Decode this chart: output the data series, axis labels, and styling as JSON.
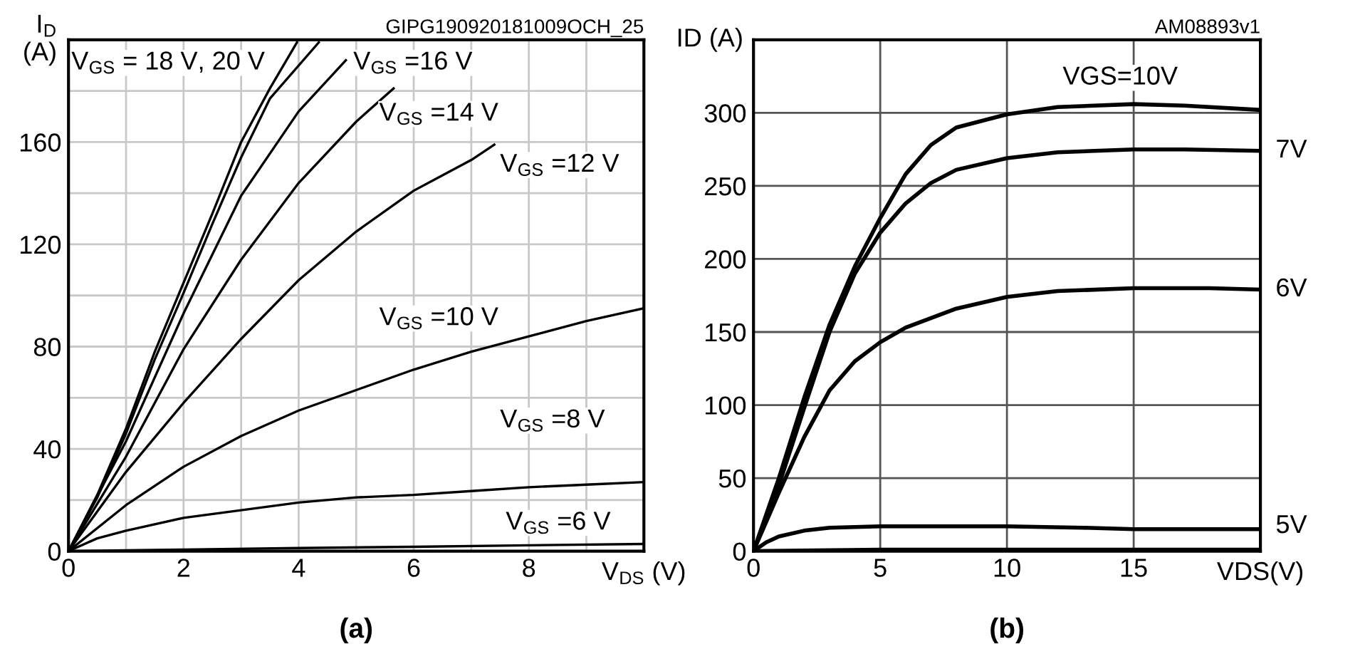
{
  "chart_data": [
    {
      "type": "line",
      "title": "(a)",
      "subtitle": "GIPG190920181009OCH_25",
      "xlabel": "V$_{DS}$ (V)",
      "ylabel": "I$_{D}$\n(A)",
      "xlim": [
        0,
        10
      ],
      "ylim": [
        0,
        200
      ],
      "xticks": [
        0,
        {
          "value": 1,
          "label": null
        },
        2,
        {
          "value": 3,
          "label": null
        },
        4,
        {
          "value": 5,
          "label": null
        },
        6,
        {
          "value": 7,
          "label": null
        },
        8,
        {
          "value": 9,
          "label": null
        },
        {
          "value": 10,
          "label": null
        }
      ],
      "yticks": [
        0,
        {
          "value": 20,
          "label": null
        },
        40,
        {
          "value": 60,
          "label": null
        },
        80,
        {
          "value": 100,
          "label": null
        },
        120,
        {
          "value": 140,
          "label": null
        },
        160,
        {
          "value": 180,
          "label": null
        },
        {
          "value": 200,
          "label": null
        }
      ],
      "grid": true,
      "legend": false,
      "marker": "none",
      "line_style": "solid",
      "series": [
        {
          "name": "V$_{GS}$ = 18 V, 20 V",
          "color": "#000000",
          "x": [
            0,
            0.5,
            1,
            1.5,
            2,
            2.5,
            3,
            3.5,
            3.97
          ],
          "values": [
            0,
            22,
            48,
            78,
            105,
            132,
            160,
            181,
            199
          ]
        },
        {
          "color": "#000000",
          "x": [
            0,
            0.5,
            1,
            1.5,
            2,
            2.5,
            3,
            3.5,
            4.35
          ],
          "values": [
            0,
            21,
            46,
            75,
            101,
            128,
            154,
            177,
            199
          ]
        },
        {
          "name": "V$_{GS}$ =16 V",
          "color": "#000000",
          "x": [
            0,
            1,
            2,
            3,
            4,
            4.82
          ],
          "values": [
            0,
            43,
            93,
            139,
            172,
            192
          ]
        },
        {
          "name": "V$_{GS}$ =14 V",
          "color": "#000000",
          "x": [
            0,
            1,
            2,
            3,
            4,
            5,
            5.65
          ],
          "values": [
            0,
            37,
            79,
            114,
            144,
            168,
            181
          ]
        },
        {
          "name": "V$_{GS}$ =12 V",
          "color": "#000000",
          "x": [
            0,
            1,
            2,
            3,
            4,
            5,
            6,
            7,
            7.4
          ],
          "values": [
            0,
            31,
            58,
            83,
            106,
            125,
            141,
            153,
            159
          ]
        },
        {
          "name": "V$_{GS}$ =10 V",
          "color": "#000000",
          "x": [
            0,
            1,
            2,
            3,
            4,
            5,
            6,
            7,
            8,
            9,
            10
          ],
          "values": [
            0,
            18,
            33,
            45,
            55,
            63,
            71,
            78,
            84,
            90,
            95
          ]
        },
        {
          "name": "V$_{GS}$ =8 V",
          "color": "#000000",
          "x": [
            0,
            0.5,
            1,
            2,
            3,
            4,
            5,
            6,
            7,
            8,
            9,
            10
          ],
          "values": [
            0,
            5,
            8,
            13,
            16,
            19,
            21,
            22,
            23.5,
            25,
            26,
            27
          ]
        },
        {
          "name": "V$_{GS}$ =6 V",
          "color": "#000000",
          "x": [
            0,
            1,
            2,
            4,
            6,
            8,
            10
          ],
          "values": [
            0,
            0.3,
            0.6,
            1.2,
            1.7,
            2.3,
            2.8
          ]
        }
      ]
    },
    {
      "type": "line",
      "title": "(b)",
      "subtitle": "AM08893v1",
      "xlabel": "VDS(V)",
      "ylabel": "ID (A)",
      "xlim": [
        0,
        20
      ],
      "ylim": [
        0,
        350
      ],
      "xticks": [
        0,
        5,
        10,
        15,
        {
          "value": 20,
          "label": null
        }
      ],
      "yticks": [
        0,
        50,
        100,
        150,
        200,
        250,
        300,
        {
          "value": 350,
          "label": null
        }
      ],
      "grid": true,
      "legend": false,
      "marker": "none",
      "line_style": "solid",
      "series": [
        {
          "name": "VGS=10V",
          "color": "#000000",
          "x": [
            0,
            1,
            2,
            3,
            4,
            5,
            6,
            7,
            8,
            10,
            12,
            15,
            17,
            20
          ],
          "values": [
            0,
            50,
            105,
            155,
            195,
            228,
            258,
            278,
            290,
            299,
            304,
            306,
            305,
            302
          ]
        },
        {
          "name": "7V",
          "color": "#000000",
          "x": [
            0,
            1,
            2,
            3,
            4,
            5,
            6,
            7,
            8,
            10,
            12,
            15,
            17,
            20
          ],
          "values": [
            0,
            45,
            98,
            150,
            190,
            218,
            238,
            252,
            261,
            269,
            273,
            275,
            275,
            274
          ]
        },
        {
          "name": "6V",
          "color": "#000000",
          "x": [
            0,
            1,
            2,
            3,
            4,
            5,
            6,
            8,
            10,
            12,
            15,
            18,
            20
          ],
          "values": [
            0,
            40,
            78,
            110,
            130,
            143,
            153,
            166,
            174,
            178,
            180,
            180,
            179
          ]
        },
        {
          "name": "5V",
          "color": "#000000",
          "x": [
            0,
            0.5,
            1,
            2,
            3,
            5,
            7,
            10,
            13,
            15,
            20
          ],
          "values": [
            0,
            6,
            10,
            14,
            16,
            17,
            17,
            17,
            16,
            15,
            15
          ]
        },
        {
          "color": "#000000",
          "x": [
            0,
            5,
            10,
            15,
            20
          ],
          "values": [
            0,
            1,
            1,
            1,
            1
          ]
        }
      ]
    }
  ]
}
